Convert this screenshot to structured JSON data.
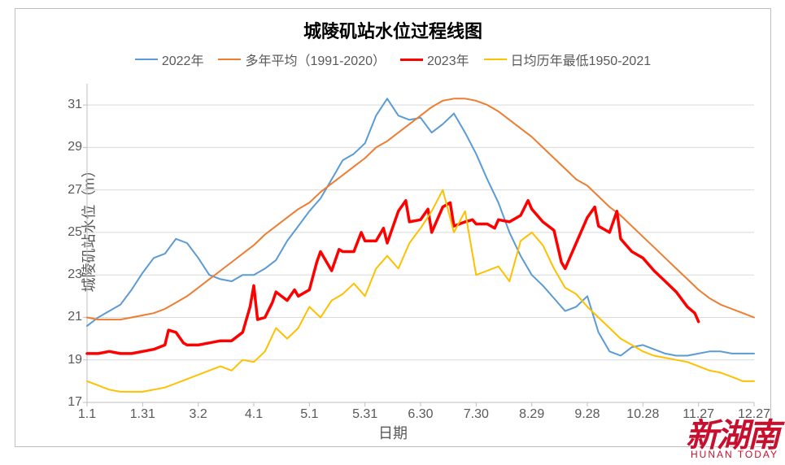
{
  "chart": {
    "type": "line",
    "title": "城陵矶站水位过程线图",
    "title_fontsize": 22,
    "title_weight": "bold",
    "x_axis": {
      "label": "日期",
      "label_fontsize": 18,
      "ticks": [
        "1.1",
        "1.31",
        "3.2",
        "4.1",
        "5.1",
        "5.31",
        "6.30",
        "7.30",
        "8.29",
        "9.28",
        "10.28",
        "11.27",
        "12.27"
      ],
      "tick_positions": [
        0,
        30,
        60,
        90,
        120,
        150,
        180,
        210,
        240,
        270,
        300,
        330,
        360
      ],
      "range": [
        0,
        360
      ],
      "tick_fontsize": 16
    },
    "y_axis": {
      "label": "城陵矶站水位（m）",
      "label_fontsize": 18,
      "ticks": [
        17,
        19,
        21,
        23,
        25,
        27,
        29,
        31
      ],
      "range": [
        17,
        32
      ],
      "tick_fontsize": 16
    },
    "grid": {
      "color": "#d9d9d9",
      "width": 1
    },
    "axis_color": "#bfbfbf",
    "background": "#ffffff",
    "legend": {
      "position": "top",
      "fontsize": 16,
      "text_color": "#595959",
      "items": [
        {
          "label": "2022年",
          "color": "#5b9bd5",
          "width": 2
        },
        {
          "label": "多年平均（1991-2020）",
          "color": "#ed7d31",
          "width": 2
        },
        {
          "label": "2023年",
          "color": "#ff0000",
          "width": 3.5
        },
        {
          "label": "日均历年最低1950-2021",
          "color": "#ffc000",
          "width": 2
        }
      ]
    },
    "series": [
      {
        "name": "2022年",
        "color": "#5b9bd5",
        "width": 2,
        "x": [
          0,
          6,
          12,
          18,
          24,
          30,
          36,
          42,
          48,
          54,
          60,
          66,
          72,
          78,
          84,
          90,
          96,
          102,
          108,
          114,
          120,
          126,
          132,
          138,
          144,
          150,
          156,
          162,
          168,
          174,
          180,
          186,
          192,
          198,
          204,
          210,
          216,
          222,
          228,
          234,
          240,
          246,
          252,
          258,
          264,
          270,
          276,
          282,
          288,
          294,
          300,
          306,
          312,
          318,
          324,
          330,
          336,
          342,
          348,
          354,
          360
        ],
        "y": [
          20.6,
          21.0,
          21.3,
          21.6,
          22.3,
          23.1,
          23.8,
          24.0,
          24.7,
          24.5,
          23.8,
          23.0,
          22.8,
          22.7,
          23.0,
          23.0,
          23.3,
          23.7,
          24.6,
          25.3,
          26.0,
          26.6,
          27.5,
          28.4,
          28.7,
          29.2,
          30.5,
          31.3,
          30.5,
          30.3,
          30.4,
          29.7,
          30.1,
          30.6,
          29.7,
          28.7,
          27.5,
          26.4,
          25.0,
          23.9,
          23.0,
          22.5,
          21.9,
          21.3,
          21.5,
          22.0,
          20.3,
          19.4,
          19.2,
          19.6,
          19.7,
          19.5,
          19.3,
          19.2,
          19.2,
          19.3,
          19.4,
          19.4,
          19.3,
          19.3,
          19.3
        ]
      },
      {
        "name": "多年平均（1991-2020）",
        "color": "#ed7d31",
        "width": 2,
        "x": [
          0,
          6,
          12,
          18,
          24,
          30,
          36,
          42,
          48,
          54,
          60,
          66,
          72,
          78,
          84,
          90,
          96,
          102,
          108,
          114,
          120,
          126,
          132,
          138,
          144,
          150,
          156,
          162,
          168,
          174,
          180,
          186,
          192,
          198,
          204,
          210,
          216,
          222,
          228,
          234,
          240,
          246,
          252,
          258,
          264,
          270,
          276,
          282,
          288,
          294,
          300,
          306,
          312,
          318,
          324,
          330,
          336,
          342,
          348,
          354,
          360
        ],
        "y": [
          21.0,
          20.9,
          20.9,
          20.9,
          21.0,
          21.1,
          21.2,
          21.4,
          21.7,
          22.0,
          22.4,
          22.8,
          23.2,
          23.6,
          24.0,
          24.4,
          24.9,
          25.3,
          25.7,
          26.1,
          26.4,
          26.9,
          27.3,
          27.7,
          28.1,
          28.5,
          29.0,
          29.3,
          29.7,
          30.1,
          30.5,
          30.9,
          31.2,
          31.3,
          31.3,
          31.2,
          31.0,
          30.7,
          30.3,
          29.9,
          29.5,
          29.0,
          28.5,
          28.0,
          27.5,
          27.2,
          26.7,
          26.2,
          25.8,
          25.3,
          24.8,
          24.3,
          23.8,
          23.3,
          22.8,
          22.3,
          21.9,
          21.6,
          21.4,
          21.2,
          21.0
        ]
      },
      {
        "name": "2023年",
        "color": "#ff0000",
        "width": 3.5,
        "x": [
          0,
          6,
          12,
          18,
          24,
          30,
          36,
          42,
          44,
          48,
          52,
          54,
          60,
          66,
          72,
          78,
          84,
          88,
          90,
          92,
          96,
          100,
          102,
          108,
          112,
          114,
          120,
          124,
          126,
          132,
          136,
          138,
          144,
          148,
          150,
          156,
          160,
          162,
          168,
          172,
          174,
          180,
          184,
          186,
          192,
          196,
          198,
          204,
          208,
          210,
          216,
          220,
          222,
          228,
          234,
          238,
          240,
          246,
          252,
          256,
          258,
          264,
          270,
          274,
          276,
          282,
          286,
          288,
          294,
          300,
          306,
          312,
          318,
          324,
          328,
          330
        ],
        "y": [
          19.3,
          19.3,
          19.4,
          19.3,
          19.3,
          19.4,
          19.5,
          19.7,
          20.4,
          20.3,
          19.8,
          19.7,
          19.7,
          19.8,
          19.9,
          19.9,
          20.3,
          21.5,
          22.5,
          20.9,
          21.0,
          21.7,
          22.2,
          21.8,
          22.3,
          22.0,
          22.3,
          23.6,
          24.1,
          23.2,
          24.2,
          24.1,
          24.1,
          25.0,
          24.6,
          24.6,
          25.2,
          24.5,
          26.0,
          26.5,
          25.5,
          25.6,
          26.1,
          25.0,
          26.2,
          26.4,
          25.3,
          25.5,
          25.6,
          25.4,
          25.4,
          25.2,
          25.6,
          25.5,
          25.8,
          26.5,
          26.1,
          25.5,
          25.1,
          23.6,
          23.3,
          24.5,
          25.7,
          26.2,
          25.3,
          25.0,
          26.0,
          24.7,
          24.1,
          23.8,
          23.2,
          22.7,
          22.2,
          21.5,
          21.2,
          20.8
        ]
      },
      {
        "name": "日均历年最低1950-2021",
        "color": "#ffc000",
        "width": 2,
        "x": [
          0,
          6,
          12,
          18,
          24,
          30,
          36,
          42,
          48,
          54,
          60,
          66,
          72,
          78,
          84,
          90,
          96,
          102,
          108,
          114,
          120,
          126,
          132,
          138,
          144,
          150,
          156,
          162,
          168,
          174,
          180,
          186,
          192,
          198,
          204,
          210,
          216,
          222,
          228,
          234,
          240,
          246,
          252,
          258,
          264,
          270,
          276,
          282,
          288,
          294,
          300,
          306,
          312,
          318,
          324,
          330,
          336,
          342,
          348,
          354,
          360
        ],
        "y": [
          18.0,
          17.8,
          17.6,
          17.5,
          17.5,
          17.5,
          17.6,
          17.7,
          17.9,
          18.1,
          18.3,
          18.5,
          18.7,
          18.5,
          19.0,
          18.9,
          19.4,
          20.5,
          20.0,
          20.5,
          21.5,
          21.0,
          21.8,
          22.1,
          22.6,
          22.0,
          23.3,
          23.9,
          23.3,
          24.5,
          25.2,
          26.0,
          27.0,
          25.0,
          26.0,
          23.0,
          23.2,
          23.4,
          22.7,
          24.6,
          25.0,
          24.4,
          23.3,
          22.4,
          22.1,
          21.5,
          21.0,
          20.5,
          20.0,
          19.7,
          19.4,
          19.2,
          19.1,
          19.0,
          18.9,
          18.7,
          18.5,
          18.4,
          18.2,
          18.0,
          18.0
        ]
      }
    ]
  },
  "watermark": {
    "cn": "新湖南",
    "en": "HUNAN TODAY",
    "color": "#c8102e"
  }
}
